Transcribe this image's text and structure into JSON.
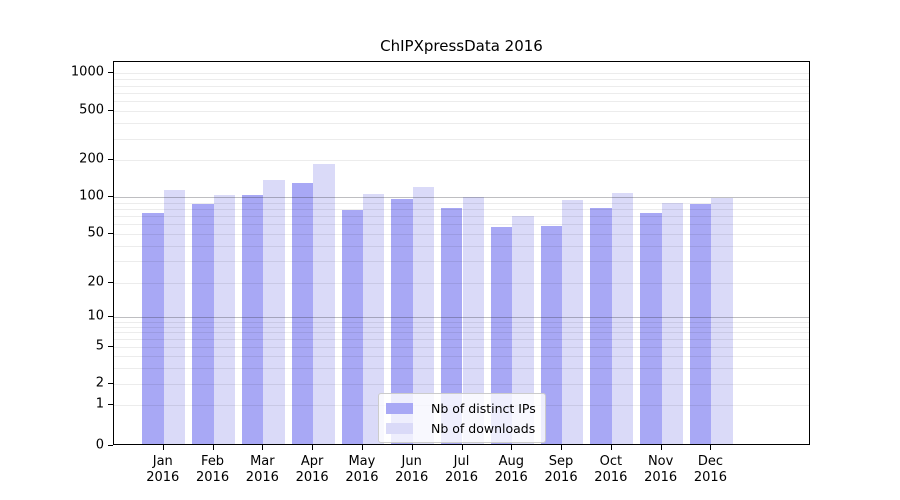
{
  "chart_data": {
    "type": "bar",
    "title": "ChIPXpressData 2016",
    "categories": [
      "Jan",
      "Feb",
      "Mar",
      "Apr",
      "May",
      "Jun",
      "Jul",
      "Aug",
      "Sep",
      "Oct",
      "Nov",
      "Dec"
    ],
    "category_year": "2016",
    "series": [
      {
        "name": "Nb of distinct IPs",
        "color": "#a8a8f5",
        "values": [
          71,
          84,
          100,
          125,
          76,
          93,
          78,
          55,
          56,
          78,
          72,
          84
        ]
      },
      {
        "name": "Nb of downloads",
        "color": "#dadaf8",
        "values": [
          110,
          101,
          134,
          180,
          103,
          117,
          96,
          67,
          92,
          104,
          86,
          95
        ]
      }
    ],
    "yticks": [
      0,
      1,
      2,
      5,
      10,
      20,
      50,
      100,
      200,
      500,
      1000
    ],
    "yscale": "symlog",
    "ylim": [
      0,
      1000
    ],
    "xlabel": "",
    "ylabel": "",
    "grid": true,
    "legend_position": "lower center"
  }
}
